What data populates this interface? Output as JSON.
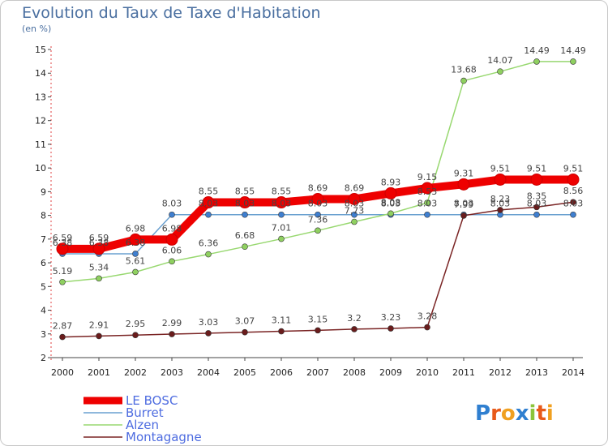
{
  "title": "Evolution du Taux de Taxe d'Habitation",
  "subtitle": "(en %)",
  "logo": {
    "text": "Proxiti"
  },
  "chart_data": {
    "type": "line",
    "x": [
      2000,
      2001,
      2002,
      2003,
      2004,
      2005,
      2006,
      2007,
      2008,
      2009,
      2010,
      2011,
      2012,
      2013,
      2014
    ],
    "ylim": [
      2,
      15
    ],
    "yticks": [
      2,
      3,
      4,
      5,
      6,
      7,
      8,
      9,
      10,
      11,
      12,
      13,
      14,
      15
    ],
    "grid": false,
    "legend": "bottom-left",
    "series": [
      {
        "name": "LE BOSC",
        "color": "#ee0000",
        "values": [
          6.59,
          6.59,
          6.98,
          6.98,
          8.55,
          8.55,
          8.55,
          8.69,
          8.69,
          8.93,
          9.15,
          9.31,
          9.51,
          9.51,
          9.51
        ]
      },
      {
        "name": "Burret",
        "color": "#6aa0d0",
        "values": [
          6.38,
          6.38,
          6.38,
          8.03,
          8.03,
          8.03,
          8.03,
          8.03,
          8.03,
          8.03,
          8.03,
          8.03,
          8.03,
          8.03,
          8.03
        ]
      },
      {
        "name": "Alzen",
        "color": "#98d870",
        "values": [
          5.19,
          5.34,
          5.61,
          6.06,
          6.36,
          6.68,
          7.01,
          7.36,
          7.73,
          8.08,
          8.53,
          13.68,
          14.07,
          14.49,
          14.49
        ]
      },
      {
        "name": "Montagagne",
        "color": "#7a2424",
        "values": [
          2.87,
          2.91,
          2.95,
          2.99,
          3.03,
          3.07,
          3.11,
          3.15,
          3.2,
          3.23,
          3.28,
          7.99,
          8.23,
          8.35,
          8.56
        ]
      }
    ]
  }
}
